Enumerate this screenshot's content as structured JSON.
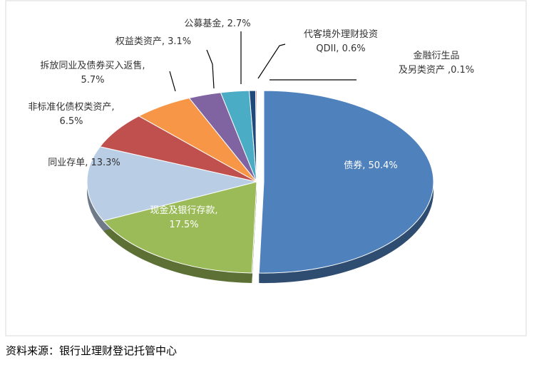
{
  "chart_data": {
    "type": "pie",
    "values": [
      50.4,
      17.5,
      13.3,
      6.5,
      5.7,
      3.1,
      2.7,
      0.6,
      0.1
    ],
    "value_labels": [
      "债券, 50.4%",
      "现金及银行存款,\n17.5%",
      "同业存单, 13.3%",
      "非标准化债权类资产,\n6.5%",
      "拆放同业及债券买入返售,\n5.7%",
      "权益类资产, 3.1%",
      "公募基金, 2.7%",
      "代客境外理财投资\nQDII, 0.6%",
      "金融衍生品\n及另类资产 ,0.1%"
    ],
    "colors": [
      "#4f81bd",
      "#9bbb59",
      "#b9cde5",
      "#c0504d",
      "#f79646",
      "#8064a2",
      "#4bacc6",
      "#1f497d",
      "#943634"
    ]
  },
  "source": "资料来源：银行业理财登记托管中心"
}
